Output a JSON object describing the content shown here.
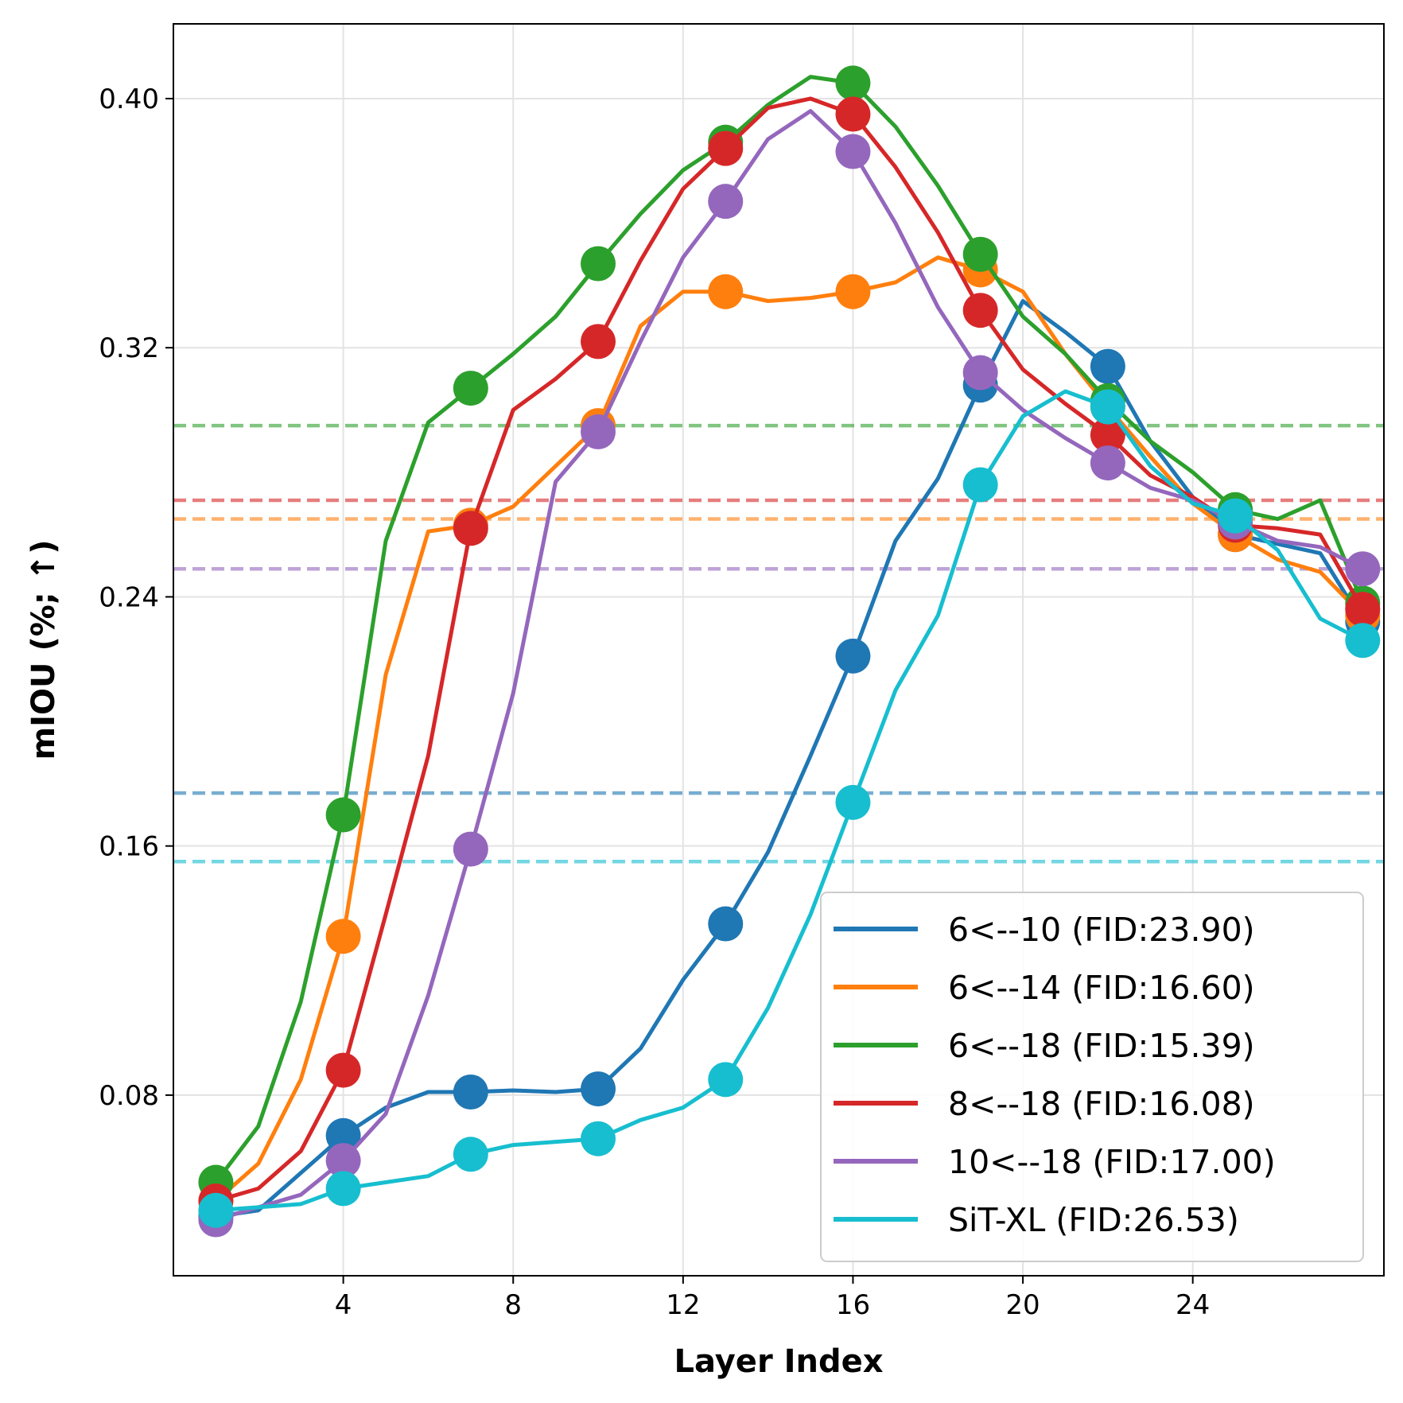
{
  "chart_data": {
    "type": "line",
    "title": "",
    "xlabel": "Layer Index",
    "ylabel": "mIOU (%; ↑)",
    "xlim": [
      0,
      28.5
    ],
    "ylim": [
      0.022,
      0.424
    ],
    "xticks": [
      4,
      8,
      12,
      16,
      20,
      24
    ],
    "xtick_labels": [
      "4",
      "8",
      "12",
      "16",
      "20",
      "24"
    ],
    "yticks": [
      0.08,
      0.16,
      0.24,
      0.32,
      0.4
    ],
    "ytick_labels": [
      "0.08",
      "0.16",
      "0.24",
      "0.32",
      "0.40"
    ],
    "grid": true,
    "legend_position": "lower-right",
    "x": [
      1,
      2,
      3,
      4,
      5,
      6,
      7,
      8,
      9,
      10,
      11,
      12,
      13,
      14,
      15,
      16,
      17,
      18,
      19,
      20,
      21,
      22,
      23,
      24,
      25,
      26,
      27,
      28
    ],
    "marker_x": [
      1,
      4,
      7,
      10,
      13,
      16,
      19,
      22,
      25,
      28
    ],
    "series": [
      {
        "name": "6<--10 (FID:23.90)",
        "color": "#1f77b4",
        "baseline": 0.177,
        "values": [
          0.041,
          0.043,
          0.055,
          0.067,
          0.076,
          0.081,
          0.081,
          0.0815,
          0.081,
          0.082,
          0.095,
          0.117,
          0.135,
          0.158,
          0.189,
          0.221,
          0.258,
          0.278,
          0.308,
          0.335,
          0.325,
          0.314,
          0.29,
          0.272,
          0.26,
          0.257,
          0.254,
          0.232
        ]
      },
      {
        "name": "6<--14 (FID:16.60)",
        "color": "#ff7f0e",
        "baseline": 0.265,
        "values": [
          0.046,
          0.058,
          0.085,
          0.131,
          0.215,
          0.261,
          0.263,
          0.269,
          0.282,
          0.295,
          0.327,
          0.338,
          0.338,
          0.335,
          0.336,
          0.338,
          0.341,
          0.349,
          0.345,
          0.338,
          0.318,
          0.301,
          0.285,
          0.27,
          0.26,
          0.252,
          0.248,
          0.234
        ]
      },
      {
        "name": "6<--18 (FID:15.39)",
        "color": "#2ca02c",
        "baseline": 0.295,
        "values": [
          0.052,
          0.07,
          0.11,
          0.17,
          0.258,
          0.296,
          0.307,
          0.318,
          0.33,
          0.347,
          0.363,
          0.377,
          0.386,
          0.398,
          0.407,
          0.405,
          0.391,
          0.372,
          0.35,
          0.33,
          0.318,
          0.303,
          0.29,
          0.28,
          0.268,
          0.265,
          0.271,
          0.238
        ]
      },
      {
        "name": "8<--18 (FID:16.08)",
        "color": "#d62728",
        "baseline": 0.271,
        "values": [
          0.046,
          0.05,
          0.062,
          0.088,
          0.138,
          0.189,
          0.262,
          0.3,
          0.31,
          0.322,
          0.348,
          0.371,
          0.384,
          0.397,
          0.4,
          0.395,
          0.378,
          0.357,
          0.332,
          0.313,
          0.302,
          0.292,
          0.279,
          0.272,
          0.263,
          0.262,
          0.26,
          0.236
        ]
      },
      {
        "name": "10<--18 (FID:17.00)",
        "color": "#9467bd",
        "baseline": 0.249,
        "values": [
          0.04,
          0.044,
          0.048,
          0.059,
          0.074,
          0.112,
          0.159,
          0.209,
          0.277,
          0.293,
          0.322,
          0.349,
          0.367,
          0.387,
          0.396,
          0.383,
          0.36,
          0.333,
          0.312,
          0.3,
          0.291,
          0.283,
          0.275,
          0.271,
          0.264,
          0.258,
          0.256,
          0.249
        ]
      },
      {
        "name": "SiT-XL (FID:26.53)",
        "color": "#17becf",
        "baseline": 0.155,
        "values": [
          0.043,
          0.044,
          0.045,
          0.05,
          0.052,
          0.054,
          0.061,
          0.064,
          0.065,
          0.066,
          0.072,
          0.076,
          0.085,
          0.108,
          0.138,
          0.174,
          0.21,
          0.234,
          0.276,
          0.298,
          0.306,
          0.301,
          0.282,
          0.27,
          0.266,
          0.255,
          0.233,
          0.226
        ]
      }
    ]
  }
}
